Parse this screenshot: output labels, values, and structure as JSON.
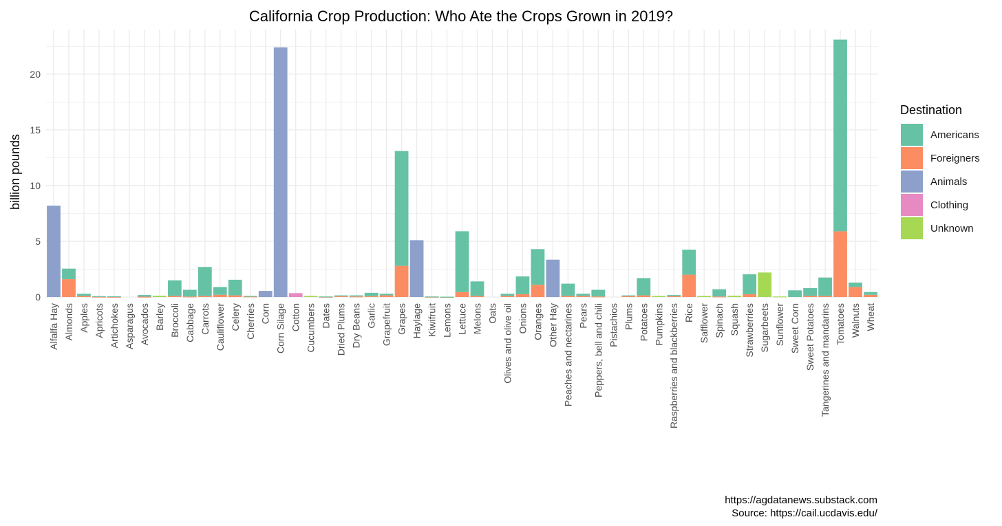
{
  "chart_data": {
    "type": "bar",
    "stacked": true,
    "title": "California Crop Production: Who Ate the Crops Grown in 2019?",
    "xlabel": "",
    "ylabel": "billion pounds",
    "ylim": [
      0,
      24
    ],
    "yticks": [
      0,
      5,
      10,
      15,
      20
    ],
    "grid": true,
    "legend": {
      "title": "Destination",
      "position": "right"
    },
    "categories": [
      "Alfalfa Hay",
      "Almonds",
      "Apples",
      "Apricots",
      "Artichokes",
      "Asparagus",
      "Avocados",
      "Barley",
      "Broccoli",
      "Cabbage",
      "Carrots",
      "Cauliflower",
      "Celery",
      "Cherries",
      "Corn",
      "Corn Silage",
      "Cotton",
      "Cucumbers",
      "Dates",
      "Dried Plums",
      "Dry Beans",
      "Garlic",
      "Grapefruit",
      "Grapes",
      "Haylage",
      "Kiwifruit",
      "Lemons",
      "Lettuce",
      "Melons",
      "Oats",
      "Olives and olive oil",
      "Onions",
      "Oranges",
      "Other Hay",
      "Peaches and nectarines",
      "Pears",
      "Peppers, bell and chili",
      "Pistachios",
      "Plums",
      "Potatoes",
      "Pumpkins",
      "Raspberries and blackberries",
      "Rice",
      "Safflower",
      "Spinach",
      "Squash",
      "Strawberries",
      "Sugarbeets",
      "Sunflower",
      "Sweet Corn",
      "Sweet Potatoes",
      "Tangerines and mandarins",
      "Tomatoes",
      "Walnuts",
      "Wheat"
    ],
    "series": [
      {
        "name": "Foreigners",
        "color": "#fc8d62",
        "values": [
          0,
          1.6,
          0.1,
          0.03,
          0.02,
          0,
          0.03,
          0,
          0.1,
          0.05,
          0.1,
          0.2,
          0.15,
          0.05,
          0,
          0,
          0,
          0,
          0.02,
          0.08,
          0.05,
          0.08,
          0.15,
          2.8,
          0,
          0.02,
          0.01,
          0.45,
          0.1,
          0,
          0.1,
          0.25,
          1.1,
          0,
          0.1,
          0.1,
          0.05,
          0,
          0.1,
          0.15,
          0,
          0.08,
          2.0,
          0,
          0.05,
          0,
          0.25,
          0,
          0,
          0,
          0.1,
          0.1,
          5.9,
          0.9,
          0.2
        ]
      },
      {
        "name": "Americans",
        "color": "#66c2a5",
        "values": [
          0,
          0.95,
          0.2,
          0.05,
          0.05,
          0,
          0.15,
          0,
          1.4,
          0.6,
          2.6,
          0.7,
          1.4,
          0.05,
          0,
          0,
          0,
          0,
          0.03,
          0.07,
          0.1,
          0.3,
          0.15,
          10.3,
          0,
          0.03,
          0.02,
          5.45,
          1.3,
          0,
          0.2,
          1.6,
          3.2,
          0,
          1.1,
          0.2,
          0.6,
          0,
          0.05,
          1.55,
          0,
          0.1,
          2.25,
          0,
          0.65,
          0,
          1.8,
          0,
          0,
          0.6,
          0.7,
          1.65,
          17.2,
          0.4,
          0.25
        ]
      },
      {
        "name": "Animals",
        "color": "#8da0cb",
        "values": [
          8.2,
          0,
          0,
          0,
          0,
          0,
          0,
          0,
          0,
          0,
          0,
          0,
          0,
          0,
          0.55,
          22.4,
          0,
          0,
          0,
          0,
          0,
          0,
          0,
          0,
          5.1,
          0,
          0,
          0,
          0,
          0,
          0,
          0,
          0,
          3.35,
          0,
          0,
          0,
          0,
          0,
          0,
          0,
          0,
          0,
          0,
          0,
          0,
          0,
          0,
          0,
          0,
          0,
          0,
          0,
          0,
          0
        ]
      },
      {
        "name": "Clothing",
        "color": "#e78ac3",
        "values": [
          0,
          0,
          0,
          0,
          0,
          0,
          0,
          0,
          0,
          0,
          0,
          0,
          0,
          0,
          0,
          0,
          0.35,
          0,
          0,
          0,
          0,
          0,
          0,
          0,
          0,
          0,
          0,
          0,
          0,
          0,
          0,
          0,
          0,
          0,
          0,
          0,
          0,
          0,
          0,
          0,
          0,
          0,
          0,
          0,
          0,
          0,
          0,
          0,
          0,
          0,
          0,
          0,
          0,
          0,
          0
        ]
      },
      {
        "name": "Unknown",
        "color": "#a6d854",
        "values": [
          0,
          0,
          0,
          0,
          0,
          0,
          0,
          0.12,
          0,
          0,
          0,
          0,
          0,
          0,
          0,
          0,
          0,
          0.1,
          0,
          0,
          0,
          0,
          0,
          0,
          0,
          0,
          0,
          0,
          0,
          0,
          0,
          0,
          0,
          0,
          0,
          0,
          0,
          0,
          0,
          0,
          0.1,
          0,
          0,
          0.1,
          0,
          0.12,
          0,
          2.2,
          0.05,
          0,
          0,
          0,
          0,
          0,
          0
        ]
      }
    ],
    "legend_order": [
      "Americans",
      "Foreigners",
      "Animals",
      "Clothing",
      "Unknown"
    ]
  },
  "caption": {
    "line1": "https://agdatanews.substack.com",
    "line2": "Source: https://cail.ucdavis.edu/"
  }
}
